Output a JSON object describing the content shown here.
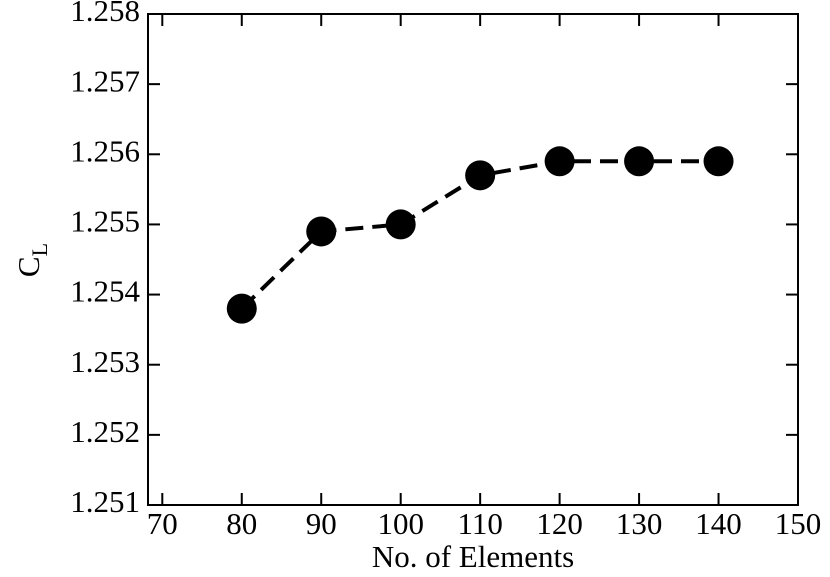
{
  "chart_data": {
    "type": "line",
    "xlabel": "No. of Elements",
    "ylabel": "C",
    "ylabel_subscript": "L",
    "x": [
      80,
      90,
      100,
      110,
      120,
      130,
      140
    ],
    "series": [
      {
        "color": "#000000",
        "values": [
          1.2538,
          1.2549,
          1.255,
          1.2557,
          1.2559,
          1.2559,
          1.2559
        ]
      }
    ],
    "xlim": [
      68.2,
      150
    ],
    "xticks": [
      70,
      80,
      90,
      100,
      110,
      120,
      130,
      140,
      150
    ],
    "ylim": [
      1.251,
      1.258
    ],
    "yticks": [
      1.251,
      1.252,
      1.253,
      1.254,
      1.255,
      1.256,
      1.257,
      1.258
    ],
    "line_style": "dashed",
    "marker": "circle"
  }
}
